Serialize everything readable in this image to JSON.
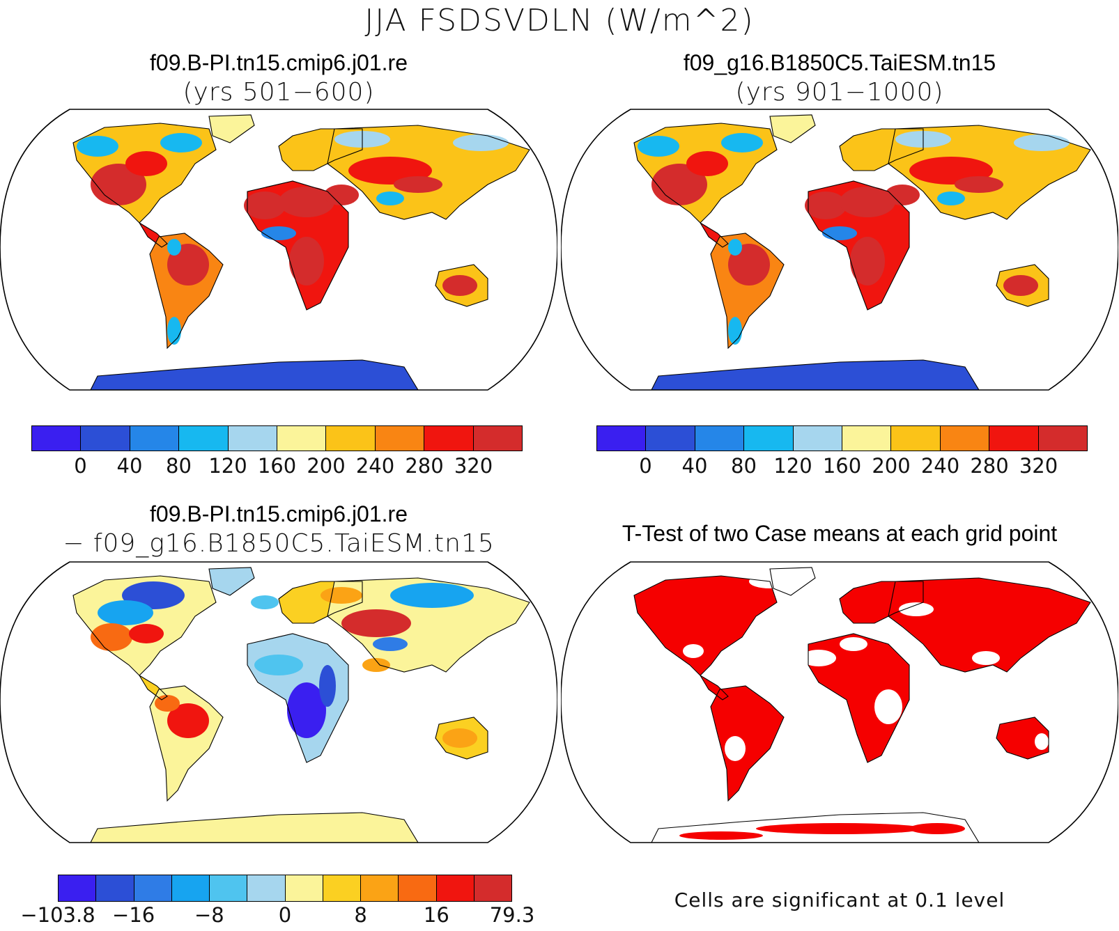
{
  "figure": {
    "title": "JJA FSDSVDLN (W/m^2)"
  },
  "panels": {
    "top_left": {
      "title": "f09.B-PI.tn15.cmip6.j01.re",
      "subtitle": "(yrs 501−600)"
    },
    "top_right": {
      "title": "f09_g16.B1850C5.TaiESM.tn15",
      "subtitle": "(yrs 901−1000)"
    },
    "bottom_left": {
      "title": "f09.B-PI.tn15.cmip6.j01.re",
      "subtitle": "− f09_g16.B1850C5.TaiESM.tn15"
    },
    "bottom_right": {
      "title": "T-Test of two Case means at each grid point",
      "note": "Cells are significant at 0.1 level"
    }
  },
  "colorbars": {
    "abs": {
      "colors": [
        "#3a1ff0",
        "#2c4fd6",
        "#2586e8",
        "#17b8f0",
        "#a6d6ee",
        "#fbf49a",
        "#fbc318",
        "#f98513",
        "#f0150f",
        "#d42c2c"
      ],
      "labels": [
        "0",
        "40",
        "80",
        "120",
        "160",
        "200",
        "240",
        "280",
        "320"
      ]
    },
    "diff": {
      "colors": [
        "#3a1ff0",
        "#2c4fd6",
        "#2f7ce6",
        "#17a4f0",
        "#4fc4ef",
        "#a6d6ee",
        "#fbf49a",
        "#fbd022",
        "#fba315",
        "#f86a12",
        "#f0150f",
        "#d42c2c"
      ],
      "labels": [
        "−103.8",
        "−16",
        "−8",
        "0",
        "8",
        "16",
        "79.3"
      ]
    },
    "sig_color": "#f50000"
  }
}
